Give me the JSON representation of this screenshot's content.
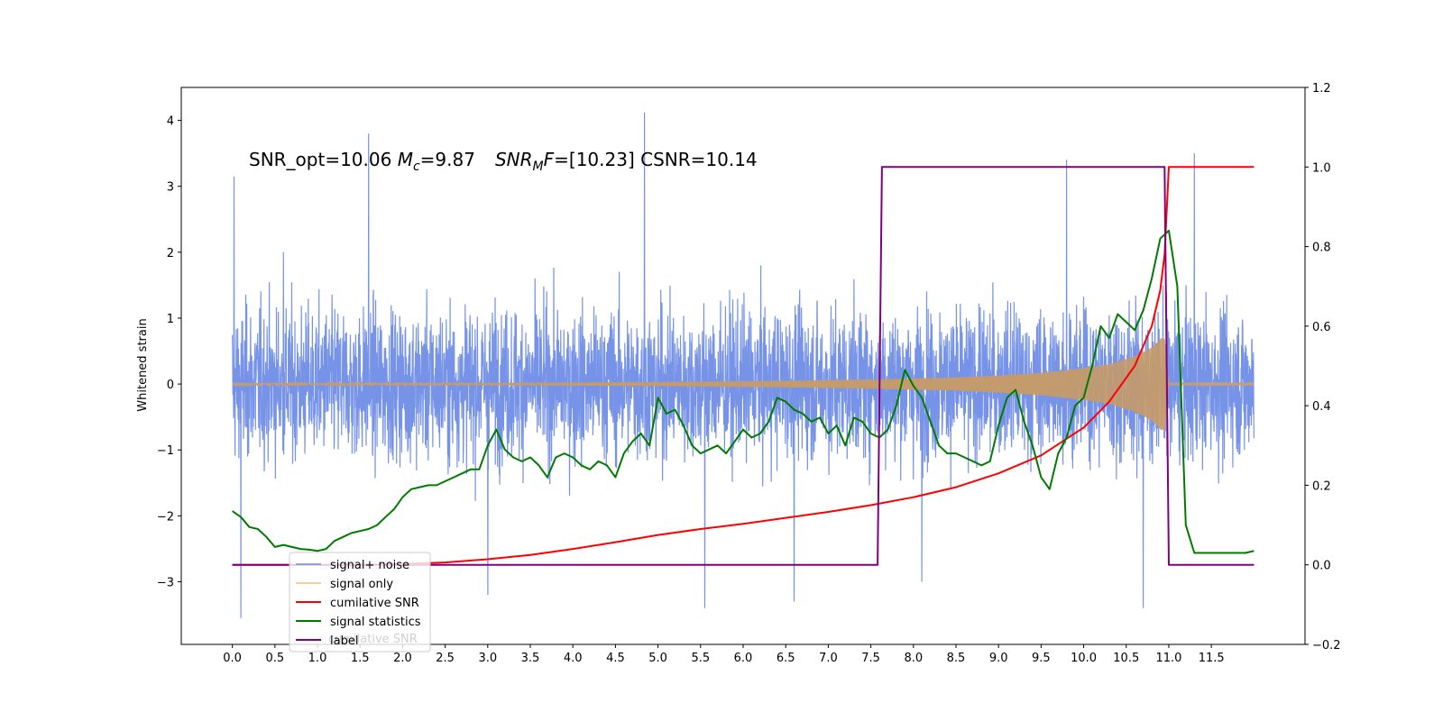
{
  "chart_data": {
    "type": "line",
    "title": "SNR_opt=10.06 M_c=9.87    SNR_MF=[10.23] CSNR=10.14",
    "title_parts": {
      "p1": "SNR_opt=10.06 ",
      "mc_sym": "M",
      "mc_sub": "c",
      "mc_val": "=9.87",
      "mf_sym": "SNR",
      "mf_sub": "M",
      "mf_f": "F",
      "mf_val": "=[10.23]",
      "csnr": " CSNR=10.14"
    },
    "xlabel": "",
    "ylabel": "Whitened strain",
    "x_range": [
      -0.6,
      12.6
    ],
    "y_left_range": [
      -3.95,
      4.5
    ],
    "y_right_range": [
      -0.2,
      1.2
    ],
    "x_ticks": [
      "0.0",
      "0.5",
      "1.0",
      "1.5",
      "2.0",
      "2.5",
      "3.0",
      "3.5",
      "4.0",
      "4.5",
      "5.0",
      "5.5",
      "6.0",
      "6.5",
      "7.0",
      "7.5",
      "8.0",
      "8.5",
      "9.0",
      "9.5",
      "10.0",
      "10.5",
      "11.0",
      "11.5"
    ],
    "y_left_ticks": [
      "-3",
      "-2",
      "-1",
      "0",
      "1",
      "2",
      "3",
      "4"
    ],
    "y_right_ticks": [
      "-0.2",
      "0.0",
      "0.2",
      "0.4",
      "0.6",
      "0.8",
      "1.0",
      "1.2"
    ],
    "grid": false,
    "legend_position": "lower-left",
    "colors": {
      "signal_noise": "#6f8de6",
      "signal_only": "#f5b04a",
      "cumulative_snr": "#ff0000",
      "signal_statistics": "#007a00",
      "label": "#800080"
    },
    "legend": [
      {
        "name": "signal+ noise",
        "color": "#6f8de6",
        "width": 1.5
      },
      {
        "name": "signal only",
        "color": "#f5c070",
        "width": 1.5
      },
      {
        "name": "cumilative SNR",
        "color": "#ff0000",
        "width": 2
      },
      {
        "name": "signal statistics",
        "color": "#007a00",
        "width": 2
      },
      {
        "name": "label",
        "color": "#800080",
        "width": 2
      }
    ],
    "legend_ghost_text": "cumilative SNR",
    "series": [
      {
        "name": "signal+ noise",
        "axis": "left",
        "x_start": 0.0,
        "x_end": 12.0,
        "noise_envelope": [
          -2.0,
          2.2
        ],
        "spikes": [
          [
            0.02,
            3.15
          ],
          [
            0.1,
            -3.55
          ],
          [
            0.6,
            2.0
          ],
          [
            1.6,
            3.8
          ],
          [
            3.0,
            -3.2
          ],
          [
            4.84,
            4.12
          ],
          [
            5.55,
            -3.4
          ],
          [
            6.6,
            -3.3
          ],
          [
            8.1,
            -3.0
          ],
          [
            9.8,
            3.4
          ],
          [
            10.7,
            -3.4
          ],
          [
            11.3,
            3.5
          ]
        ]
      },
      {
        "name": "signal only",
        "axis": "left",
        "x": [
          0.0,
          3.0,
          5.0,
          6.5,
          7.5,
          8.5,
          9.0,
          9.5,
          10.0,
          10.3,
          10.6,
          10.8,
          10.95,
          11.0,
          12.0
        ],
        "amplitude": [
          0.01,
          0.015,
          0.03,
          0.05,
          0.07,
          0.1,
          0.13,
          0.17,
          0.24,
          0.3,
          0.42,
          0.55,
          0.75,
          0.02,
          0.02
        ]
      },
      {
        "name": "cumilative SNR",
        "axis": "right",
        "x": [
          0.0,
          0.5,
          1.0,
          1.5,
          2.0,
          2.5,
          3.0,
          3.5,
          4.0,
          4.5,
          5.0,
          5.5,
          6.0,
          6.5,
          7.0,
          7.5,
          8.0,
          8.5,
          9.0,
          9.5,
          10.0,
          10.3,
          10.6,
          10.8,
          10.9,
          10.95,
          11.0,
          11.5,
          12.0
        ],
        "y": [
          0.0,
          0.0,
          0.0,
          0.0,
          0.002,
          0.006,
          0.014,
          0.025,
          0.04,
          0.057,
          0.075,
          0.09,
          0.103,
          0.118,
          0.133,
          0.15,
          0.17,
          0.195,
          0.23,
          0.275,
          0.345,
          0.41,
          0.5,
          0.6,
          0.69,
          0.78,
          1.0,
          1.0,
          1.0
        ]
      },
      {
        "name": "signal statistics",
        "axis": "right",
        "x": [
          0.0,
          0.1,
          0.2,
          0.3,
          0.4,
          0.5,
          0.6,
          0.7,
          0.8,
          0.9,
          1.0,
          1.1,
          1.2,
          1.3,
          1.4,
          1.5,
          1.6,
          1.7,
          1.8,
          1.9,
          2.0,
          2.1,
          2.2,
          2.3,
          2.4,
          2.5,
          2.6,
          2.7,
          2.8,
          2.9,
          3.0,
          3.1,
          3.2,
          3.3,
          3.4,
          3.5,
          3.6,
          3.7,
          3.8,
          3.9,
          4.0,
          4.1,
          4.2,
          4.3,
          4.4,
          4.5,
          4.6,
          4.7,
          4.8,
          4.9,
          5.0,
          5.1,
          5.2,
          5.3,
          5.4,
          5.5,
          5.6,
          5.7,
          5.8,
          5.9,
          6.0,
          6.1,
          6.2,
          6.3,
          6.4,
          6.5,
          6.6,
          6.7,
          6.8,
          6.9,
          7.0,
          7.1,
          7.2,
          7.3,
          7.4,
          7.5,
          7.6,
          7.7,
          7.8,
          7.9,
          8.0,
          8.1,
          8.2,
          8.3,
          8.4,
          8.5,
          8.6,
          8.7,
          8.8,
          8.9,
          9.0,
          9.1,
          9.2,
          9.3,
          9.4,
          9.5,
          9.6,
          9.7,
          9.8,
          9.9,
          10.0,
          10.1,
          10.2,
          10.3,
          10.4,
          10.5,
          10.6,
          10.7,
          10.8,
          10.9,
          11.0,
          11.1,
          11.2,
          11.3,
          11.4,
          11.5,
          11.6,
          11.7,
          11.8,
          11.9,
          12.0
        ],
        "y": [
          0.135,
          0.12,
          0.095,
          0.09,
          0.07,
          0.045,
          0.05,
          0.045,
          0.04,
          0.038,
          0.035,
          0.04,
          0.06,
          0.07,
          0.08,
          0.085,
          0.09,
          0.1,
          0.12,
          0.14,
          0.17,
          0.19,
          0.195,
          0.2,
          0.2,
          0.21,
          0.22,
          0.23,
          0.24,
          0.24,
          0.3,
          0.34,
          0.29,
          0.27,
          0.26,
          0.27,
          0.25,
          0.22,
          0.27,
          0.28,
          0.27,
          0.25,
          0.24,
          0.26,
          0.25,
          0.22,
          0.28,
          0.31,
          0.33,
          0.3,
          0.42,
          0.38,
          0.39,
          0.35,
          0.3,
          0.28,
          0.29,
          0.3,
          0.28,
          0.31,
          0.34,
          0.32,
          0.33,
          0.36,
          0.42,
          0.41,
          0.39,
          0.38,
          0.36,
          0.37,
          0.33,
          0.35,
          0.3,
          0.37,
          0.36,
          0.33,
          0.32,
          0.34,
          0.4,
          0.49,
          0.45,
          0.42,
          0.36,
          0.3,
          0.28,
          0.28,
          0.27,
          0.26,
          0.25,
          0.26,
          0.35,
          0.42,
          0.44,
          0.36,
          0.3,
          0.22,
          0.19,
          0.28,
          0.32,
          0.4,
          0.42,
          0.5,
          0.6,
          0.57,
          0.63,
          0.61,
          0.59,
          0.64,
          0.72,
          0.82,
          0.84,
          0.7,
          0.1,
          0.03,
          0.03,
          0.03,
          0.03,
          0.03,
          0.03,
          0.03,
          0.035
        ]
      },
      {
        "name": "label",
        "axis": "right",
        "x": [
          0.0,
          7.58,
          7.63,
          10.95,
          11.0,
          12.0
        ],
        "y": [
          0.0,
          0.0,
          1.0,
          1.0,
          0.0,
          0.0
        ]
      }
    ]
  }
}
